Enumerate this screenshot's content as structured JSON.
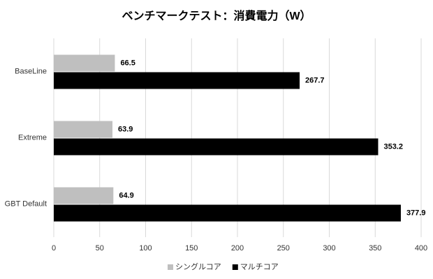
{
  "chart_data": {
    "type": "hbar",
    "title": "ベンチマークテスト：消費電力（W）",
    "categories": [
      "BaseLine",
      "Extreme",
      "GBT Default"
    ],
    "series": [
      {
        "name": "シングルコア",
        "color": "#bfbfbf",
        "values": [
          66.5,
          63.9,
          64.9
        ]
      },
      {
        "name": "マルチコア",
        "color": "#000000",
        "values": [
          267.7,
          353.2,
          377.9
        ]
      }
    ],
    "xlim": [
      0,
      400
    ],
    "xticks": [
      0,
      50,
      100,
      150,
      200,
      250,
      300,
      350,
      400
    ],
    "grid": true,
    "legend": "bottom"
  }
}
